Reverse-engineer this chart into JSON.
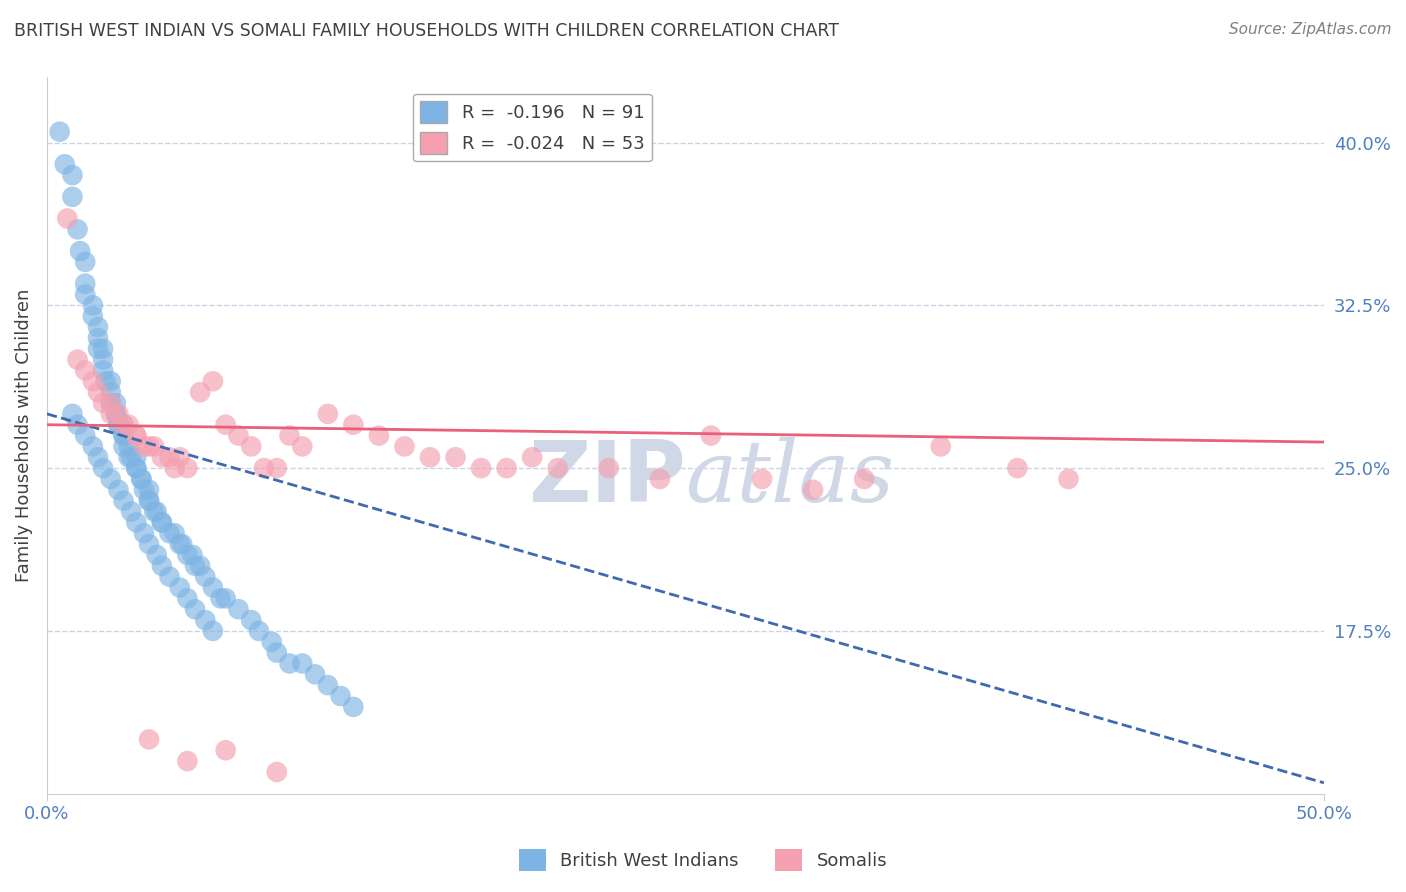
{
  "title": "BRITISH WEST INDIAN VS SOMALI FAMILY HOUSEHOLDS WITH CHILDREN CORRELATION CHART",
  "source": "Source: ZipAtlas.com",
  "ylabel": "Family Households with Children",
  "xlim": [
    0.0,
    0.5
  ],
  "ylim": [
    10.0,
    43.0
  ],
  "y_ticks_right": [
    17.5,
    25.0,
    32.5,
    40.0
  ],
  "y_tick_labels_right": [
    "17.5%",
    "25.0%",
    "32.5%",
    "40.0%"
  ],
  "legend_r1": "R =  -0.196   N = 91",
  "legend_r2": "R =  -0.024   N = 53",
  "blue_color": "#7EB4E3",
  "pink_color": "#F4A0B0",
  "trend_blue_color": "#4169B0",
  "trend_pink_color": "#E8607A",
  "watermark": "ZIPatlas",
  "watermark_color": "#D0D8E8",
  "grid_color": "#C8D4E8",
  "background_color": "#FFFFFF",
  "blue_scatter_x": [
    0.005,
    0.007,
    0.01,
    0.01,
    0.012,
    0.013,
    0.015,
    0.015,
    0.015,
    0.018,
    0.018,
    0.02,
    0.02,
    0.02,
    0.022,
    0.022,
    0.022,
    0.023,
    0.025,
    0.025,
    0.025,
    0.027,
    0.027,
    0.027,
    0.028,
    0.028,
    0.03,
    0.03,
    0.03,
    0.03,
    0.032,
    0.032,
    0.033,
    0.035,
    0.035,
    0.035,
    0.037,
    0.037,
    0.038,
    0.04,
    0.04,
    0.04,
    0.042,
    0.043,
    0.045,
    0.045,
    0.048,
    0.05,
    0.052,
    0.053,
    0.055,
    0.057,
    0.058,
    0.06,
    0.062,
    0.065,
    0.068,
    0.07,
    0.075,
    0.08,
    0.083,
    0.088,
    0.09,
    0.095,
    0.1,
    0.105,
    0.11,
    0.115,
    0.12,
    0.01,
    0.012,
    0.015,
    0.018,
    0.02,
    0.022,
    0.025,
    0.028,
    0.03,
    0.033,
    0.035,
    0.038,
    0.04,
    0.043,
    0.045,
    0.048,
    0.052,
    0.055,
    0.058,
    0.062,
    0.065
  ],
  "blue_scatter_y": [
    40.5,
    39.0,
    38.5,
    37.5,
    36.0,
    35.0,
    34.5,
    33.5,
    33.0,
    32.5,
    32.0,
    31.5,
    31.0,
    30.5,
    30.5,
    30.0,
    29.5,
    29.0,
    29.0,
    28.5,
    28.0,
    28.0,
    27.5,
    27.5,
    27.0,
    27.0,
    27.0,
    26.5,
    26.5,
    26.0,
    26.0,
    25.5,
    25.5,
    25.5,
    25.0,
    25.0,
    24.5,
    24.5,
    24.0,
    24.0,
    23.5,
    23.5,
    23.0,
    23.0,
    22.5,
    22.5,
    22.0,
    22.0,
    21.5,
    21.5,
    21.0,
    21.0,
    20.5,
    20.5,
    20.0,
    19.5,
    19.0,
    19.0,
    18.5,
    18.0,
    17.5,
    17.0,
    16.5,
    16.0,
    16.0,
    15.5,
    15.0,
    14.5,
    14.0,
    27.5,
    27.0,
    26.5,
    26.0,
    25.5,
    25.0,
    24.5,
    24.0,
    23.5,
    23.0,
    22.5,
    22.0,
    21.5,
    21.0,
    20.5,
    20.0,
    19.5,
    19.0,
    18.5,
    18.0,
    17.5
  ],
  "pink_scatter_x": [
    0.008,
    0.012,
    0.015,
    0.018,
    0.02,
    0.022,
    0.025,
    0.025,
    0.028,
    0.03,
    0.032,
    0.035,
    0.035,
    0.038,
    0.04,
    0.042,
    0.045,
    0.048,
    0.05,
    0.052,
    0.055,
    0.06,
    0.065,
    0.07,
    0.075,
    0.08,
    0.085,
    0.09,
    0.095,
    0.1,
    0.11,
    0.12,
    0.13,
    0.14,
    0.15,
    0.16,
    0.17,
    0.18,
    0.19,
    0.2,
    0.22,
    0.24,
    0.26,
    0.28,
    0.3,
    0.32,
    0.35,
    0.38,
    0.4,
    0.04,
    0.055,
    0.07,
    0.09
  ],
  "pink_scatter_y": [
    36.5,
    30.0,
    29.5,
    29.0,
    28.5,
    28.0,
    28.0,
    27.5,
    27.5,
    27.0,
    27.0,
    26.5,
    26.5,
    26.0,
    26.0,
    26.0,
    25.5,
    25.5,
    25.0,
    25.5,
    25.0,
    28.5,
    29.0,
    27.0,
    26.5,
    26.0,
    25.0,
    25.0,
    26.5,
    26.0,
    27.5,
    27.0,
    26.5,
    26.0,
    25.5,
    25.5,
    25.0,
    25.0,
    25.5,
    25.0,
    25.0,
    24.5,
    26.5,
    24.5,
    24.0,
    24.5,
    26.0,
    25.0,
    24.5,
    12.5,
    11.5,
    12.0,
    11.0
  ],
  "blue_line_x": [
    0.0,
    0.5
  ],
  "blue_line_y": [
    27.5,
    10.5
  ],
  "blue_line_style": "--",
  "pink_line_x": [
    0.0,
    0.5
  ],
  "pink_line_y": [
    27.0,
    26.2
  ],
  "pink_line_style": "-",
  "axis_label_color": "#5080C0",
  "title_color": "#404040",
  "source_color": "#808080"
}
